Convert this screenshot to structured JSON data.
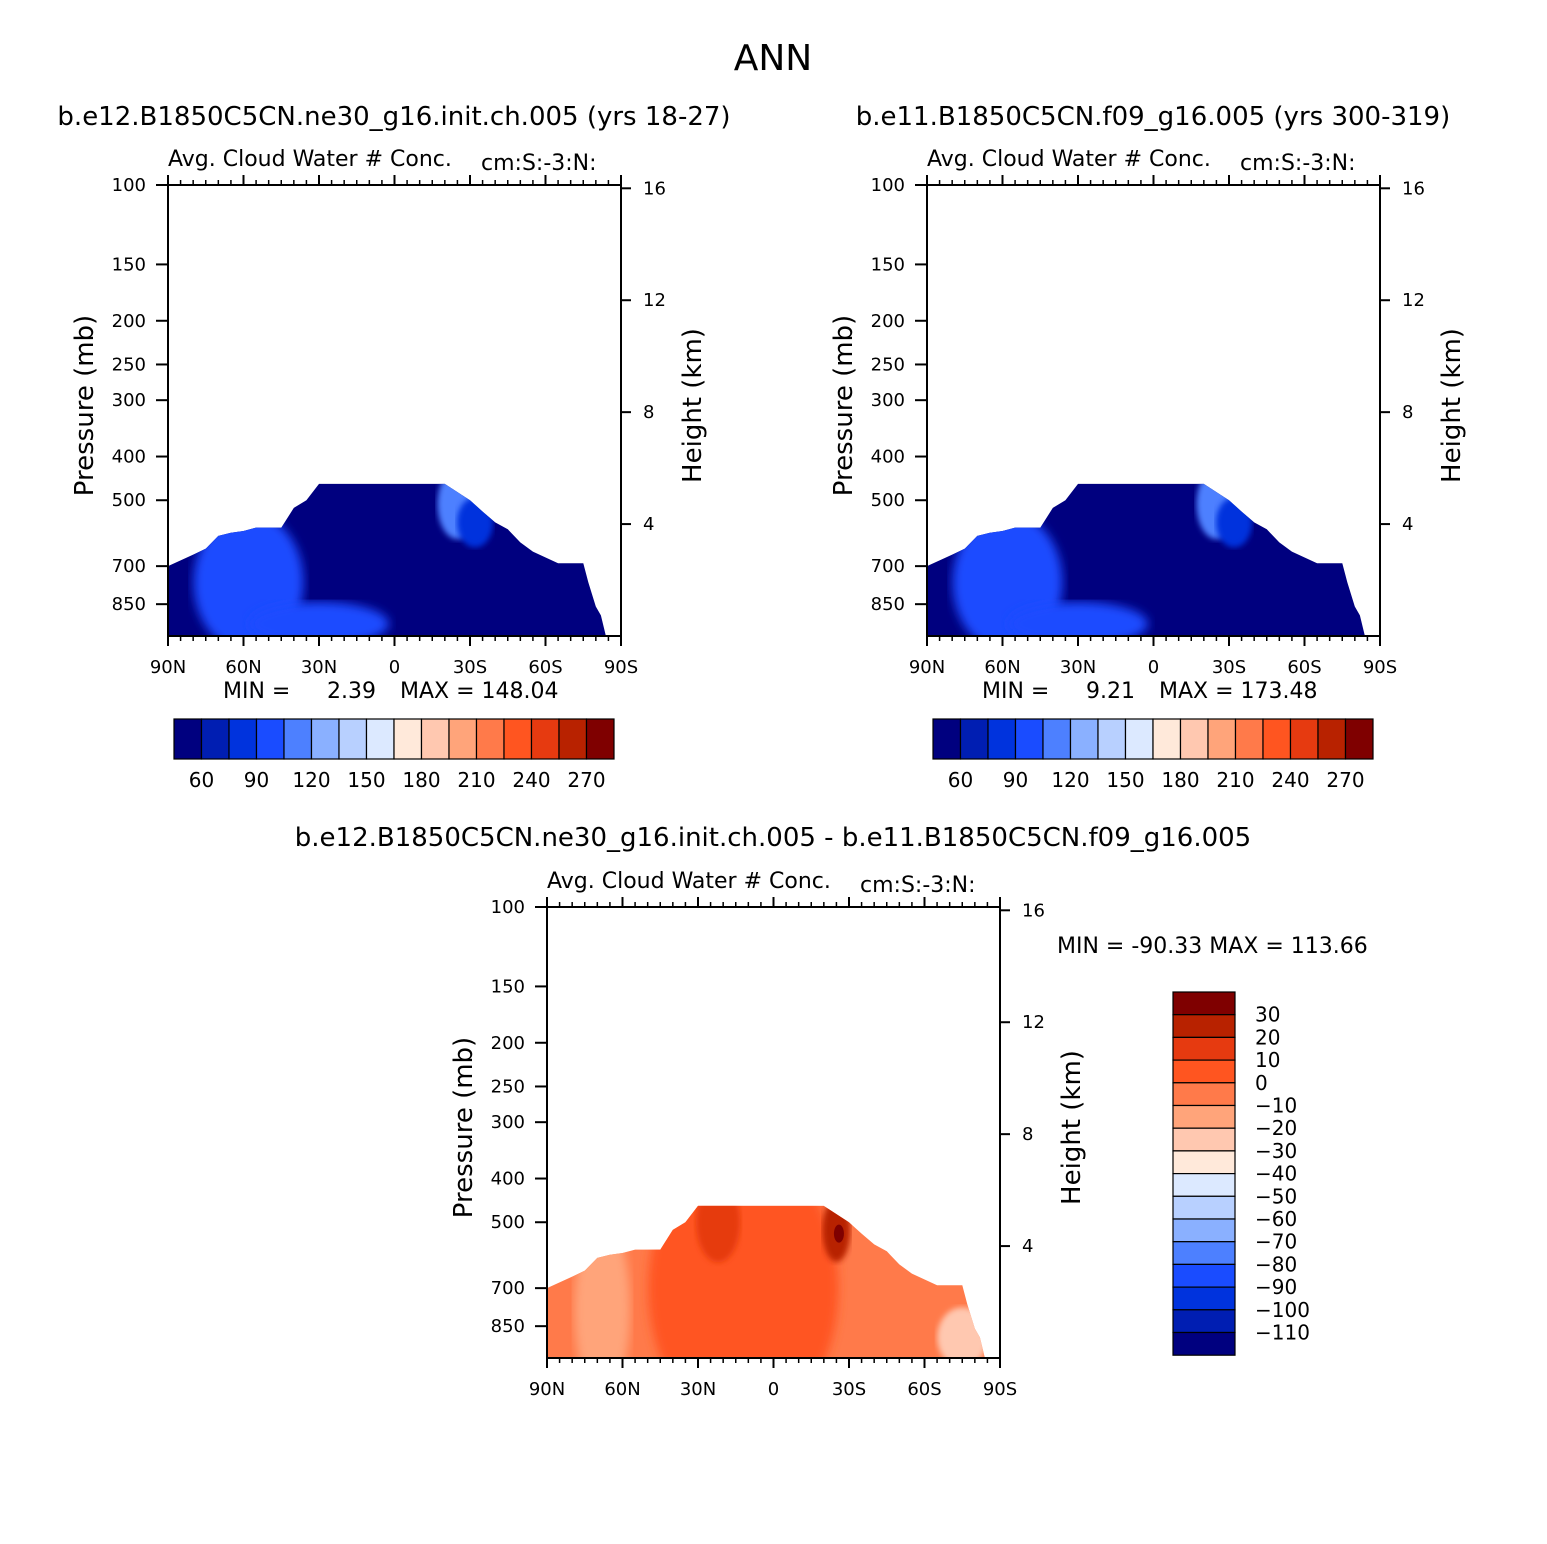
{
  "page_title": "ANN",
  "colors": {
    "abs_scale": [
      "#00007f",
      "#001eb2",
      "#0033dd",
      "#1a4cff",
      "#4d80ff",
      "#8ab0ff",
      "#b8d0ff",
      "#dce9ff",
      "#ffe9da",
      "#ffc8b0",
      "#ffa47a",
      "#ff7a4a",
      "#ff5520",
      "#e63a10",
      "#b82200",
      "#7f0000"
    ],
    "diff_scale": [
      "#00007f",
      "#001eb2",
      "#0033dd",
      "#1a4cff",
      "#4d80ff",
      "#8ab0ff",
      "#b8d0ff",
      "#dce9ff",
      "#ffe9da",
      "#ffc8b0",
      "#ffa47a",
      "#ff7a4a",
      "#ff5520",
      "#e63a10",
      "#b82200",
      "#7f0000"
    ]
  },
  "chart_data": [
    {
      "type": "heatmap",
      "case_title": "b.e12.B1850C5CN.ne30_g16.init.ch.005 (yrs 18-27)",
      "title": "Avg. Cloud Water # Conc.",
      "units": "cm:S:-3:N:",
      "xlabel": "",
      "ylabel": "Pressure (mb)",
      "ylabel_right": "Height (km)",
      "x_ticks": [
        "90N",
        "60N",
        "30N",
        "0",
        "30S",
        "60S",
        "90S"
      ],
      "y_ticks": [
        "100",
        "150",
        "200",
        "250",
        "300",
        "400",
        "500",
        "700",
        "850"
      ],
      "y_ticks_right": [
        "16",
        "12",
        "8",
        "4"
      ],
      "ylim": [
        100,
        1000
      ],
      "y_scale": "log",
      "min_label": "MIN =",
      "min_value": "2.39",
      "max_label": "MAX = 148.04",
      "colorbar": {
        "orientation": "horizontal",
        "labels": [
          "60",
          "90",
          "120",
          "150",
          "180",
          "210",
          "240",
          "270"
        ]
      }
    },
    {
      "type": "heatmap",
      "case_title": "b.e11.B1850C5CN.f09_g16.005 (yrs 300-319)",
      "title": "Avg. Cloud Water # Conc.",
      "units": "cm:S:-3:N:",
      "xlabel": "",
      "ylabel": "Pressure (mb)",
      "ylabel_right": "Height (km)",
      "x_ticks": [
        "90N",
        "60N",
        "30N",
        "0",
        "30S",
        "60S",
        "90S"
      ],
      "y_ticks": [
        "100",
        "150",
        "200",
        "250",
        "300",
        "400",
        "500",
        "700",
        "850"
      ],
      "y_ticks_right": [
        "16",
        "12",
        "8",
        "4"
      ],
      "ylim": [
        100,
        1000
      ],
      "y_scale": "log",
      "min_label": "MIN =",
      "min_value": "9.21",
      "max_label": "MAX = 173.48",
      "colorbar": {
        "orientation": "horizontal",
        "labels": [
          "60",
          "90",
          "120",
          "150",
          "180",
          "210",
          "240",
          "270"
        ]
      }
    },
    {
      "type": "heatmap",
      "case_title": "b.e12.B1850C5CN.ne30_g16.init.ch.005 - b.e11.B1850C5CN.f09_g16.005",
      "title": "Avg. Cloud Water # Conc.",
      "units": "cm:S:-3:N:",
      "xlabel": "",
      "ylabel": "Pressure (mb)",
      "ylabel_right": "Height (km)",
      "x_ticks": [
        "90N",
        "60N",
        "30N",
        "0",
        "30S",
        "60S",
        "90S"
      ],
      "y_ticks": [
        "100",
        "150",
        "200",
        "250",
        "300",
        "400",
        "500",
        "700",
        "850"
      ],
      "y_ticks_right": [
        "16",
        "12",
        "8",
        "4"
      ],
      "ylim": [
        100,
        1000
      ],
      "y_scale": "log",
      "minmax_label": "MIN = -90.33   MAX = 113.66",
      "colorbar": {
        "orientation": "vertical",
        "labels": [
          "30",
          "20",
          "10",
          "0",
          "-10",
          "-20",
          "-30",
          "-40",
          "-50",
          "-60",
          "-70",
          "-80",
          "-90",
          "-100",
          "-110"
        ]
      }
    }
  ]
}
